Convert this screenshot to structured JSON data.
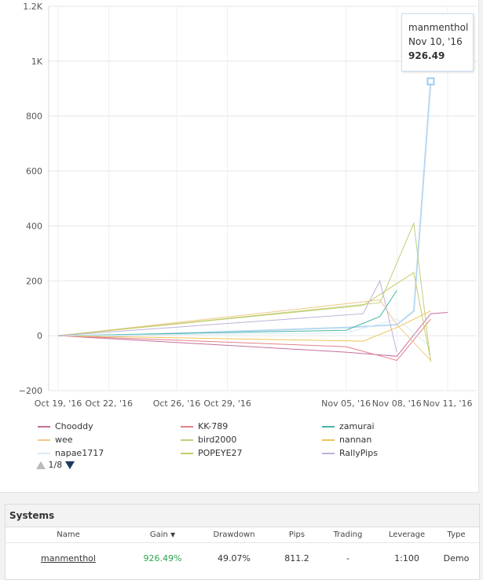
{
  "chart_data": {
    "type": "line",
    "y_ticks": [
      "1.2K",
      "1K",
      "800",
      "600",
      "400",
      "200",
      "0",
      "−200"
    ],
    "x_ticks": [
      "Oct 19, '16",
      "Oct 22, '16",
      "Oct 26, '16",
      "Oct 29, '16",
      "Nov 05, '16",
      "Nov 08, '16",
      "Nov 11, '16"
    ],
    "ylim": [
      -200,
      1200
    ],
    "grid": true,
    "series": [
      {
        "name": "manmenthol",
        "color": "#b8d8f2",
        "x": [
          "Oct 19, '16",
          "Oct 22, '16",
          "Nov 05, '16",
          "Nov 08, '16",
          "Nov 09, '16",
          "Nov 10, '16"
        ],
        "values": [
          0,
          0,
          30,
          40,
          90,
          926.49
        ]
      },
      {
        "name": "Chooddy",
        "color": "#c76f9c",
        "x": [
          "Oct 19, '16",
          "Nov 05, '16",
          "Nov 08, '16",
          "Nov 10, '16",
          "Nov 11, '16"
        ],
        "values": [
          0,
          -60,
          -75,
          80,
          85
        ]
      },
      {
        "name": "KK-789",
        "color": "#e2818a",
        "x": [
          "Oct 19, '16",
          "Nov 05, '16",
          "Nov 08, '16",
          "Nov 10, '16"
        ],
        "values": [
          0,
          -40,
          -90,
          60
        ]
      },
      {
        "name": "zamurai",
        "color": "#45b6a5",
        "x": [
          "Oct 19, '16",
          "Nov 05, '16",
          "Nov 07, '16",
          "Nov 08, '16"
        ],
        "values": [
          0,
          20,
          70,
          165
        ]
      },
      {
        "name": "wee",
        "color": "#f3c98a",
        "x": [
          "Oct 19, '16",
          "Nov 07, '16",
          "Nov 08, '16",
          "Nov 10, '16"
        ],
        "values": [
          0,
          130,
          40,
          -90
        ]
      },
      {
        "name": "bird2000",
        "color": "#bfd07a",
        "x": [
          "Oct 19, '16",
          "Nov 07, '16",
          "Nov 09, '16",
          "Nov 10, '16"
        ],
        "values": [
          0,
          120,
          410,
          -95
        ]
      },
      {
        "name": "nannan",
        "color": "#f0c45a",
        "x": [
          "Oct 19, '16",
          "Nov 06, '16",
          "Nov 08, '16",
          "Nov 10, '16"
        ],
        "values": [
          0,
          -20,
          30,
          90
        ]
      },
      {
        "name": "napae1717",
        "color": "#d6ecf6",
        "x": [
          "Oct 19, '16",
          "Nov 05, '16",
          "Nov 08, '16",
          "Nov 10, '16"
        ],
        "values": [
          0,
          10,
          60,
          -40
        ]
      },
      {
        "name": "POPEYE27",
        "color": "#c6cc68",
        "x": [
          "Oct 19, '16",
          "Nov 06, '16",
          "Nov 09, '16",
          "Nov 10, '16"
        ],
        "values": [
          0,
          110,
          230,
          -90
        ]
      },
      {
        "name": "RallyPips",
        "color": "#c0b0d8",
        "x": [
          "Oct 19, '16",
          "Nov 06, '16",
          "Nov 07, '16",
          "Nov 08, '16"
        ],
        "values": [
          0,
          80,
          200,
          -60
        ]
      }
    ],
    "tooltip": {
      "series": "manmenthol",
      "date": "Nov 10, '16",
      "value": "926.49"
    }
  },
  "legend": {
    "items": [
      "Chooddy",
      "KK-789",
      "zamurai",
      "wee",
      "bird2000",
      "nannan",
      "napae1717",
      "POPEYE27",
      "RallyPips"
    ],
    "page": "1/8"
  },
  "systems": {
    "title": "Systems",
    "headers": [
      "Name",
      "Gain",
      "Drawdown",
      "Pips",
      "Trading",
      "Leverage",
      "Type"
    ],
    "row": {
      "name": "manmenthol",
      "gain": "926.49%",
      "drawdown": "49.07%",
      "pips": "811.2",
      "trading": "-",
      "leverage": "1:100",
      "type": "Demo"
    },
    "gain_color": "#2ea44f"
  }
}
